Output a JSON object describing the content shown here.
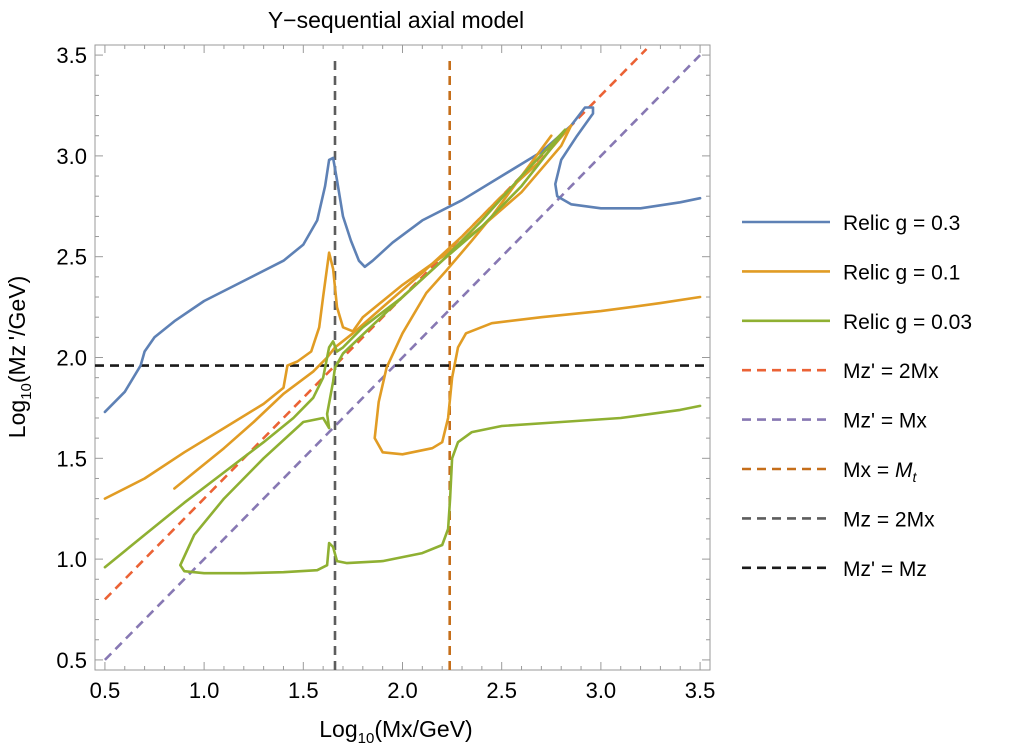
{
  "chart_data": {
    "type": "line",
    "title": "Y−sequential axial model",
    "xlabel": {
      "prefix": "Log",
      "sub": "10",
      "rest": "(Mx/GeV)"
    },
    "ylabel": {
      "prefix": "Log",
      "sub": "10",
      "rest": "(Mz '/GeV)"
    },
    "xlim": [
      0.45,
      3.55
    ],
    "ylim": [
      0.45,
      3.55
    ],
    "xticks": [
      {
        "value": 0.5,
        "label": "0.5"
      },
      {
        "value": 1.0,
        "label": "1.0"
      },
      {
        "value": 1.5,
        "label": "1.5"
      },
      {
        "value": 2.0,
        "label": "2.0"
      },
      {
        "value": 2.5,
        "label": "2.5"
      },
      {
        "value": 3.0,
        "label": "3.0"
      },
      {
        "value": 3.5,
        "label": "3.5"
      }
    ],
    "yticks": [
      {
        "value": 0.5,
        "label": "0.5"
      },
      {
        "value": 1.0,
        "label": "1.0"
      },
      {
        "value": 1.5,
        "label": "1.5"
      },
      {
        "value": 2.0,
        "label": "2.0"
      },
      {
        "value": 2.5,
        "label": "2.5"
      },
      {
        "value": 3.0,
        "label": "3.0"
      },
      {
        "value": 3.5,
        "label": "3.5"
      }
    ],
    "series": [
      {
        "name": "Relic g = 0.3",
        "color": "#5e81b5",
        "dash": "none",
        "paths": [
          [
            [
              0.5,
              1.73
            ],
            [
              0.6,
              1.83
            ],
            [
              0.68,
              1.96
            ],
            [
              0.7,
              2.03
            ],
            [
              0.75,
              2.1
            ],
            [
              0.85,
              2.18
            ],
            [
              1.0,
              2.28
            ],
            [
              1.2,
              2.38
            ],
            [
              1.4,
              2.48
            ],
            [
              1.5,
              2.56
            ],
            [
              1.57,
              2.68
            ],
            [
              1.61,
              2.85
            ],
            [
              1.63,
              2.98
            ],
            [
              1.65,
              2.99
            ],
            [
              1.67,
              2.88
            ],
            [
              1.7,
              2.7
            ],
            [
              1.74,
              2.58
            ],
            [
              1.78,
              2.48
            ],
            [
              1.81,
              2.45
            ],
            [
              1.85,
              2.48
            ],
            [
              1.95,
              2.57
            ],
            [
              2.1,
              2.68
            ],
            [
              2.3,
              2.78
            ],
            [
              2.5,
              2.9
            ],
            [
              2.7,
              3.02
            ],
            [
              2.85,
              3.15
            ],
            [
              2.92,
              3.24
            ],
            [
              2.96,
              3.24
            ],
            [
              2.96,
              3.21
            ],
            [
              2.88,
              3.1
            ],
            [
              2.8,
              2.98
            ],
            [
              2.77,
              2.86
            ],
            [
              2.78,
              2.8
            ],
            [
              2.85,
              2.76
            ],
            [
              3.0,
              2.74
            ],
            [
              3.2,
              2.74
            ],
            [
              3.4,
              2.77
            ],
            [
              3.5,
              2.79
            ]
          ]
        ]
      },
      {
        "name": "Relic g = 0.1",
        "color": "#e19c24",
        "dash": "none",
        "paths": [
          [
            [
              0.5,
              1.3
            ],
            [
              0.7,
              1.4
            ],
            [
              0.9,
              1.53
            ],
            [
              1.1,
              1.65
            ],
            [
              1.3,
              1.77
            ],
            [
              1.4,
              1.85
            ],
            [
              1.42,
              1.96
            ],
            [
              1.47,
              1.98
            ],
            [
              1.54,
              2.03
            ],
            [
              1.58,
              2.15
            ],
            [
              1.6,
              2.3
            ],
            [
              1.63,
              2.52
            ],
            [
              1.65,
              2.44
            ],
            [
              1.67,
              2.25
            ],
            [
              1.7,
              2.15
            ],
            [
              1.75,
              2.13
            ],
            [
              1.8,
              2.2
            ],
            [
              2.0,
              2.36
            ],
            [
              2.2,
              2.5
            ],
            [
              2.4,
              2.65
            ],
            [
              2.6,
              2.82
            ],
            [
              2.8,
              3.05
            ],
            [
              2.85,
              3.15
            ]
          ],
          [
            [
              2.85,
              3.15
            ],
            [
              2.7,
              2.98
            ],
            [
              2.5,
              2.8
            ],
            [
              2.3,
              2.6
            ],
            [
              2.1,
              2.42
            ],
            [
              1.9,
              2.25
            ],
            [
              1.75,
              2.12
            ],
            [
              1.66,
              2.05
            ],
            [
              1.62,
              2.0
            ],
            [
              1.55,
              1.93
            ],
            [
              1.4,
              1.82
            ],
            [
              1.25,
              1.68
            ],
            [
              1.1,
              1.55
            ],
            [
              0.95,
              1.43
            ],
            [
              0.85,
              1.35
            ]
          ],
          [
            [
              2.75,
              3.1
            ],
            [
              2.6,
              2.9
            ],
            [
              2.45,
              2.7
            ],
            [
              2.35,
              2.58
            ],
            [
              2.22,
              2.43
            ],
            [
              2.12,
              2.32
            ],
            [
              2.0,
              2.12
            ],
            [
              1.92,
              1.95
            ],
            [
              1.88,
              1.78
            ],
            [
              1.86,
              1.6
            ],
            [
              1.9,
              1.53
            ],
            [
              2.0,
              1.52
            ],
            [
              2.15,
              1.55
            ],
            [
              2.2,
              1.58
            ],
            [
              2.23,
              1.7
            ],
            [
              2.25,
              1.9
            ],
            [
              2.28,
              2.05
            ],
            [
              2.32,
              2.12
            ],
            [
              2.45,
              2.17
            ],
            [
              2.7,
              2.2
            ],
            [
              3.0,
              2.23
            ],
            [
              3.3,
              2.27
            ],
            [
              3.5,
              2.3
            ]
          ]
        ]
      },
      {
        "name": "Relic g = 0.03",
        "color": "#8fb032",
        "dash": "none",
        "paths": [
          [
            [
              0.5,
              0.96
            ],
            [
              0.7,
              1.12
            ],
            [
              0.9,
              1.28
            ],
            [
              1.1,
              1.43
            ],
            [
              1.3,
              1.58
            ],
            [
              1.45,
              1.7
            ],
            [
              1.55,
              1.8
            ],
            [
              1.6,
              1.9
            ],
            [
              1.63,
              2.05
            ],
            [
              1.65,
              2.08
            ],
            [
              1.67,
              2.03
            ],
            [
              1.7,
              2.05
            ],
            [
              1.8,
              2.15
            ],
            [
              2.0,
              2.3
            ],
            [
              2.2,
              2.48
            ],
            [
              2.4,
              2.65
            ],
            [
              2.6,
              2.85
            ],
            [
              2.8,
              3.1
            ],
            [
              2.82,
              3.13
            ]
          ],
          [
            [
              2.82,
              3.13
            ],
            [
              2.6,
              2.9
            ],
            [
              2.4,
              2.68
            ],
            [
              2.2,
              2.48
            ],
            [
              2.0,
              2.3
            ],
            [
              1.85,
              2.16
            ],
            [
              1.7,
              2.02
            ],
            [
              1.66,
              1.95
            ],
            [
              1.65,
              1.88
            ],
            [
              1.62,
              1.72
            ],
            [
              1.63,
              1.65
            ],
            [
              1.6,
              1.7
            ],
            [
              1.5,
              1.68
            ],
            [
              1.3,
              1.5
            ],
            [
              1.1,
              1.3
            ],
            [
              0.95,
              1.12
            ],
            [
              0.88,
              0.97
            ],
            [
              0.9,
              0.94
            ],
            [
              1.0,
              0.93
            ],
            [
              1.2,
              0.93
            ],
            [
              1.4,
              0.935
            ],
            [
              1.57,
              0.945
            ],
            [
              1.62,
              0.97
            ],
            [
              1.63,
              1.08
            ],
            [
              1.65,
              1.06
            ],
            [
              1.67,
              0.99
            ],
            [
              1.72,
              0.98
            ],
            [
              1.9,
              0.99
            ],
            [
              2.1,
              1.03
            ],
            [
              2.2,
              1.07
            ],
            [
              2.23,
              1.15
            ],
            [
              2.24,
              1.3
            ],
            [
              2.25,
              1.5
            ],
            [
              2.28,
              1.58
            ],
            [
              2.35,
              1.63
            ],
            [
              2.5,
              1.66
            ],
            [
              2.8,
              1.68
            ],
            [
              3.1,
              1.7
            ],
            [
              3.4,
              1.74
            ],
            [
              3.5,
              1.76
            ]
          ]
        ]
      },
      {
        "name": "Mz' = 2Mx",
        "color": "#eb6235",
        "dash": "9,6",
        "paths": [
          [
            [
              0.5,
              0.8
            ],
            [
              3.23,
              3.53
            ]
          ]
        ]
      },
      {
        "name": "Mz' = Mx",
        "color": "#8778b3",
        "dash": "9,6",
        "paths": [
          [
            [
              0.5,
              0.5
            ],
            [
              3.5,
              3.5
            ]
          ]
        ]
      },
      {
        "name": "Mx = ",
        "name_math": "M",
        "name_math_sub": "t",
        "color": "#c56e1a",
        "dash": "9,6",
        "paths": [
          [
            [
              2.238,
              0.45
            ],
            [
              2.238,
              3.5
            ]
          ]
        ]
      },
      {
        "name": "Mz = 2Mx",
        "color": "#5d5d5d",
        "dash": "9,6",
        "paths": [
          [
            [
              1.66,
              0.45
            ],
            [
              1.66,
              3.5
            ]
          ]
        ]
      },
      {
        "name": "Mz' = Mz",
        "color": "#1a1a1a",
        "dash": "9,6",
        "paths": [
          [
            [
              0.45,
              1.96
            ],
            [
              3.55,
              1.96
            ]
          ]
        ]
      }
    ],
    "legend": {
      "placement": "right"
    }
  }
}
